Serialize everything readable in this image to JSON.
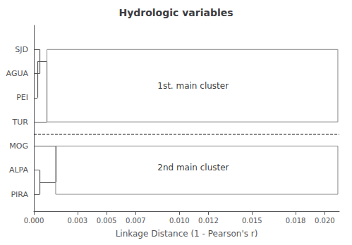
{
  "chart_data": {
    "type": "dendrogram",
    "title": "Hydrologic variables",
    "xlabel": "Linkage Distance (1 - Pearson's r)",
    "xlim": [
      0,
      0.021
    ],
    "xticks": [
      {
        "value": 0.0,
        "label": "0.000"
      },
      0.003,
      0.005,
      0.007,
      {
        "value": 0.01,
        "label": "0.010"
      },
      0.012,
      0.015,
      0.018,
      {
        "value": 0.02,
        "label": "0.020"
      }
    ],
    "ylim": [
      0.3,
      8.0
    ],
    "yticks": [
      {
        "value": 7,
        "label": "SJD"
      },
      {
        "value": 6,
        "label": "AGUA"
      },
      {
        "value": 5,
        "label": "PEI"
      },
      {
        "value": 4,
        "label": "TUR"
      },
      {
        "value": 3,
        "label": "MOG"
      },
      {
        "value": 2,
        "label": "ALPA"
      },
      {
        "value": 1,
        "label": "PIRA"
      }
    ],
    "color": "#555555",
    "merges": [
      {
        "members": [
          "SJD",
          "AGUA"
        ],
        "distance": 0.0004
      },
      {
        "members": [
          "PEI",
          "SJD",
          "AGUA"
        ],
        "distance": 0.00025
      },
      {
        "members": [
          "TUR",
          "PEI",
          "SJD",
          "AGUA"
        ],
        "distance": 0.0009
      },
      {
        "members": [
          "ALPA",
          "PIRA"
        ],
        "distance": 0.0004
      },
      {
        "members": [
          "MOG",
          "ALPA",
          "PIRA"
        ],
        "distance": 0.0015
      }
    ],
    "boxes": [
      {
        "x0": 0.0009,
        "y0": 4.0,
        "x1": 0.0209,
        "y1": 7.0,
        "color": "#888888"
      },
      {
        "x0": 0.0015,
        "y0": 1.0,
        "x1": 0.0209,
        "y1": 3.0,
        "color": "#888888"
      }
    ],
    "separator": {
      "y": 3.5,
      "line_style": "dashed",
      "color": "#000000"
    },
    "annotations": [
      {
        "text": "1st. main cluster",
        "x": 0.0085,
        "y": 5.5,
        "color": "#000000"
      },
      {
        "text": "2nd main cluster",
        "x": 0.0085,
        "y": 2.1,
        "color": "#000000"
      }
    ]
  }
}
